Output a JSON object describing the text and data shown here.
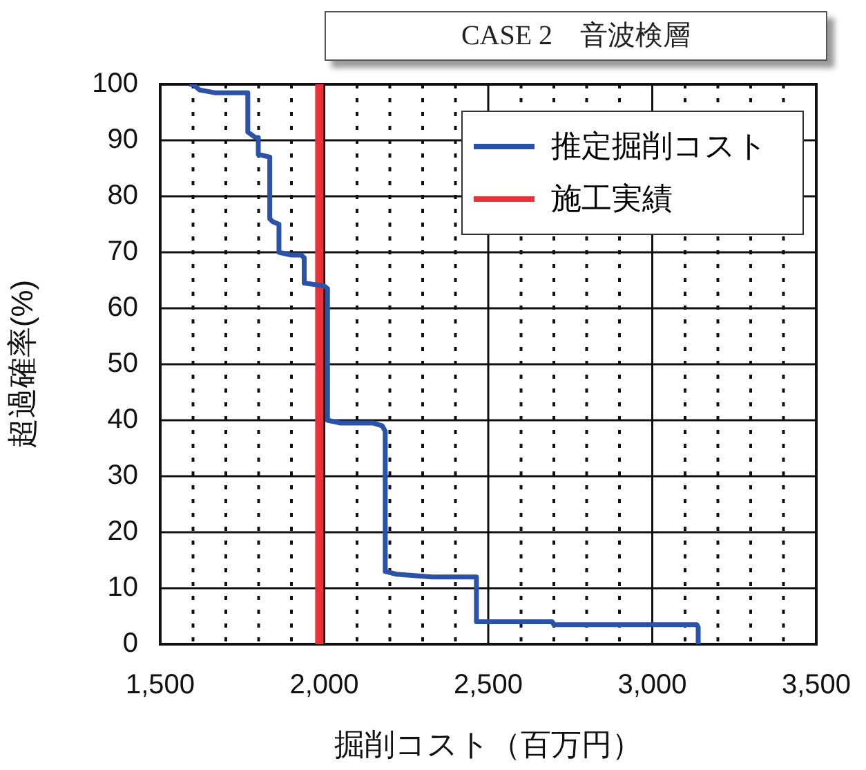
{
  "chart_data": {
    "type": "line",
    "title": "CASE 2　音波検層",
    "xlabel": "掘削コスト（百万円）",
    "ylabel": "超過確率(%)",
    "xlim": [
      1500,
      3500
    ],
    "xticks": [
      {
        "value": 1500,
        "label": "1,500"
      },
      {
        "value": 1600,
        "label": null
      },
      {
        "value": 1700,
        "label": null
      },
      {
        "value": 1800,
        "label": null
      },
      {
        "value": 1900,
        "label": null
      },
      {
        "value": 2000,
        "label": "2,000"
      },
      {
        "value": 2100,
        "label": null
      },
      {
        "value": 2200,
        "label": null
      },
      {
        "value": 2300,
        "label": null
      },
      {
        "value": 2400,
        "label": null
      },
      {
        "value": 2500,
        "label": "2,500"
      },
      {
        "value": 2600,
        "label": null
      },
      {
        "value": 2700,
        "label": null
      },
      {
        "value": 2800,
        "label": null
      },
      {
        "value": 2900,
        "label": null
      },
      {
        "value": 3000,
        "label": "3,000"
      },
      {
        "value": 3100,
        "label": null
      },
      {
        "value": 3200,
        "label": null
      },
      {
        "value": 3300,
        "label": null
      },
      {
        "value": 3400,
        "label": null
      },
      {
        "value": 3500,
        "label": "3,500"
      }
    ],
    "ylim": [
      0,
      100
    ],
    "yticks": [
      0,
      10,
      20,
      30,
      40,
      50,
      60,
      70,
      80,
      90,
      100
    ],
    "grid": true,
    "legend": "top right",
    "marker": "none",
    "series": [
      {
        "name": "推定掘削コスト",
        "color": "#2a52a8",
        "x": [
          1589,
          1600,
          1620,
          1666,
          1767,
          1767,
          1790,
          1799,
          1799,
          1834,
          1834,
          1842,
          1862,
          1862,
          1900,
          1930,
          1939,
          1939,
          2000,
          2010,
          2010,
          2050,
          2150,
          2177,
          2186,
          2186,
          2220,
          2330,
          2464,
          2464,
          2695,
          2700,
          3136,
          3140,
          3140
        ],
        "values": [
          100,
          100,
          99,
          98.5,
          98.5,
          91.5,
          90.5,
          90.5,
          87.5,
          87,
          76,
          75.5,
          75,
          70,
          69.5,
          69.5,
          69,
          64.5,
          64,
          63.5,
          40,
          39.5,
          39.5,
          39,
          38,
          13,
          12.5,
          12,
          12,
          4,
          4,
          3.5,
          3.5,
          3,
          0
        ]
      },
      {
        "name": "施工実績",
        "color": "#e8323a",
        "x": [
          1985,
          1985
        ],
        "values": [
          0,
          100
        ]
      }
    ]
  }
}
